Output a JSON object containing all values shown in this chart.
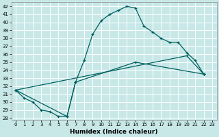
{
  "xlabel": "Humidex (Indice chaleur)",
  "bg_color": "#c8e8e8",
  "grid_color": "#ffffff",
  "line_color": "#006060",
  "xlim": [
    -0.5,
    23.5
  ],
  "ylim": [
    27.8,
    42.5
  ],
  "yticks": [
    28,
    29,
    30,
    31,
    32,
    33,
    34,
    35,
    36,
    37,
    38,
    39,
    40,
    41,
    42
  ],
  "xticks": [
    0,
    1,
    2,
    3,
    4,
    5,
    6,
    7,
    8,
    9,
    10,
    11,
    12,
    13,
    14,
    15,
    16,
    17,
    18,
    19,
    20,
    21,
    22,
    23
  ],
  "line1_x": [
    0,
    1,
    2,
    3,
    4,
    5,
    6,
    7,
    8,
    9,
    10,
    11,
    12,
    13,
    14,
    15,
    16,
    17,
    18,
    19,
    20,
    21,
    22
  ],
  "line1_y": [
    31.5,
    30.5,
    30.0,
    29.0,
    28.8,
    28.2,
    28.2,
    32.5,
    35.2,
    38.5,
    40.2,
    41.0,
    41.5,
    42.0,
    41.8,
    39.5,
    38.8,
    38.0,
    37.5,
    37.5,
    36.2,
    35.2,
    33.5
  ],
  "line2_x": [
    0,
    6,
    7,
    14,
    22
  ],
  "line2_y": [
    31.5,
    28.2,
    32.5,
    35.0,
    33.5
  ],
  "line3_x": [
    0,
    20,
    22
  ],
  "line3_y": [
    31.5,
    35.8,
    33.5
  ],
  "xlabel_fontsize": 6.5,
  "tick_fontsize": 5.0
}
